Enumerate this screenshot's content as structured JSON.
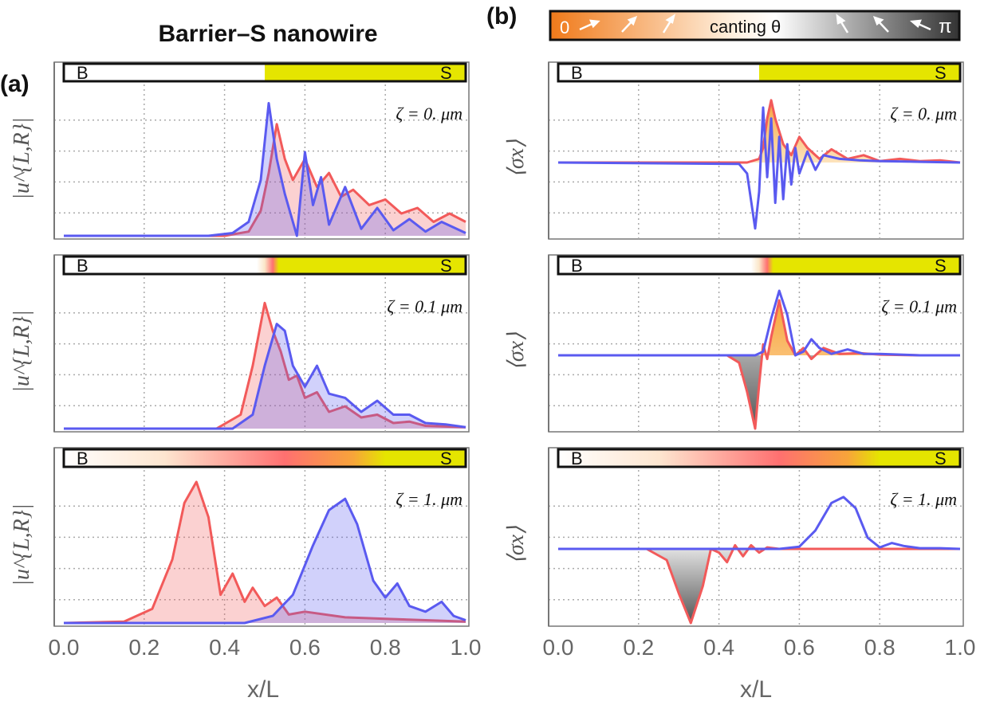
{
  "title": "Barrier–S nanowire",
  "panel_a_label": "(a)",
  "panel_b_label": "(b)",
  "canting": {
    "left": "0",
    "text": "canting θ",
    "right": "π",
    "start_color": "#f07a1a",
    "end_color": "#333333"
  },
  "region_labels": {
    "barrier": "B",
    "superconductor": "S"
  },
  "colors": {
    "red": "#f25a5a",
    "blue": "#5a5af0",
    "yellow": "#e5e500",
    "pink": "#ff7070"
  },
  "chart_data": [
    {
      "type": "line",
      "panel": "a",
      "row": 0,
      "zeta_label": "ζ = 0. μm",
      "ylabel": "|u^{L,R}|",
      "xlabel": "x/L",
      "xlim": [
        0,
        1
      ],
      "ylim": [
        0,
        1.05
      ],
      "series": [
        {
          "name": "L",
          "color": "red",
          "x": [
            0,
            0.4,
            0.46,
            0.49,
            0.51,
            0.53,
            0.55,
            0.57,
            0.6,
            0.63,
            0.66,
            0.69,
            0.72,
            0.76,
            0.8,
            0.84,
            0.88,
            0.92,
            0.96,
            1.0
          ],
          "y": [
            0,
            0.0,
            0.03,
            0.18,
            0.45,
            0.8,
            0.55,
            0.4,
            0.55,
            0.35,
            0.45,
            0.28,
            0.33,
            0.22,
            0.26,
            0.16,
            0.2,
            0.1,
            0.16,
            0.1
          ]
        },
        {
          "name": "R",
          "color": "blue",
          "x": [
            0,
            0.36,
            0.42,
            0.46,
            0.49,
            0.51,
            0.53,
            0.55,
            0.58,
            0.6,
            0.62,
            0.64,
            0.66,
            0.7,
            0.74,
            0.78,
            0.82,
            0.86,
            0.9,
            0.94,
            1.0
          ],
          "y": [
            0,
            0.0,
            0.02,
            0.1,
            0.4,
            0.95,
            0.55,
            0.3,
            0.0,
            0.6,
            0.22,
            0.42,
            0.08,
            0.35,
            0.05,
            0.2,
            0.04,
            0.12,
            0.03,
            0.1,
            0.02
          ]
        }
      ]
    },
    {
      "type": "line",
      "panel": "a",
      "row": 1,
      "zeta_label": "ζ = 0.1 μm",
      "ylabel": "|u^{L,R}|",
      "xlabel": "x/L",
      "xlim": [
        0,
        1
      ],
      "ylim": [
        0,
        1.05
      ],
      "series": [
        {
          "name": "L",
          "color": "red",
          "x": [
            0,
            0.38,
            0.44,
            0.47,
            0.5,
            0.52,
            0.54,
            0.56,
            0.58,
            0.6,
            0.63,
            0.66,
            0.7,
            0.74,
            0.78,
            0.82,
            0.86,
            0.9,
            1.0
          ],
          "y": [
            0,
            0.0,
            0.1,
            0.45,
            0.9,
            0.7,
            0.55,
            0.35,
            0.38,
            0.22,
            0.26,
            0.12,
            0.16,
            0.08,
            0.1,
            0.04,
            0.05,
            0.02,
            0.01
          ]
        },
        {
          "name": "R",
          "color": "blue",
          "x": [
            0,
            0.42,
            0.47,
            0.5,
            0.53,
            0.55,
            0.57,
            0.6,
            0.63,
            0.66,
            0.7,
            0.74,
            0.78,
            0.82,
            0.86,
            0.9,
            0.95,
            1.0
          ],
          "y": [
            0,
            0.0,
            0.1,
            0.45,
            0.75,
            0.7,
            0.45,
            0.3,
            0.45,
            0.25,
            0.22,
            0.12,
            0.2,
            0.1,
            0.1,
            0.04,
            0.03,
            0.01
          ]
        }
      ]
    },
    {
      "type": "line",
      "panel": "a",
      "row": 2,
      "zeta_label": "ζ = 1. μm",
      "ylabel": "|u^{L,R}|",
      "xlabel": "x/L",
      "xlim": [
        0,
        1
      ],
      "ylim": [
        0,
        1.05
      ],
      "series": [
        {
          "name": "L",
          "color": "red",
          "x": [
            0,
            0.15,
            0.22,
            0.27,
            0.3,
            0.33,
            0.36,
            0.39,
            0.42,
            0.45,
            0.47,
            0.5,
            0.53,
            0.56,
            0.6,
            0.7,
            0.8,
            0.9,
            1.0
          ],
          "y": [
            0,
            0.01,
            0.1,
            0.45,
            0.85,
            1.0,
            0.75,
            0.2,
            0.35,
            0.15,
            0.25,
            0.12,
            0.18,
            0.06,
            0.08,
            0.04,
            0.03,
            0.02,
            0.01
          ]
        },
        {
          "name": "R",
          "color": "blue",
          "x": [
            0,
            0.45,
            0.52,
            0.57,
            0.62,
            0.66,
            0.7,
            0.73,
            0.77,
            0.8,
            0.83,
            0.86,
            0.9,
            0.94,
            0.97,
            1.0
          ],
          "y": [
            0,
            0.0,
            0.05,
            0.2,
            0.55,
            0.8,
            0.88,
            0.7,
            0.3,
            0.18,
            0.28,
            0.12,
            0.08,
            0.15,
            0.05,
            0.02
          ]
        }
      ]
    },
    {
      "type": "line",
      "panel": "b",
      "row": 0,
      "zeta_label": "ζ = 0. μm",
      "ylabel": "⟨σx⟩",
      "xlabel": "x/L",
      "xlim": [
        0,
        1
      ],
      "ylim": [
        -1,
        1
      ],
      "series": [
        {
          "name": "L",
          "color": "red",
          "x": [
            0,
            0.47,
            0.5,
            0.51,
            0.52,
            0.53,
            0.54,
            0.56,
            0.58,
            0.6,
            0.62,
            0.65,
            0.68,
            0.72,
            0.76,
            0.8,
            0.85,
            0.9,
            0.95,
            1.0
          ],
          "y": [
            0,
            0,
            0.05,
            0.2,
            0.6,
            0.85,
            0.6,
            0.25,
            0.1,
            0.35,
            0.2,
            0.05,
            0.18,
            0.05,
            0.1,
            0.02,
            0.05,
            0.02,
            0.03,
            0.0
          ]
        },
        {
          "name": "R",
          "color": "blue",
          "x": [
            0,
            0.45,
            0.47,
            0.49,
            0.5,
            0.51,
            0.52,
            0.53,
            0.54,
            0.55,
            0.56,
            0.57,
            0.58,
            0.59,
            0.6,
            0.62,
            0.64,
            0.66,
            0.7,
            0.75,
            0.8,
            0.9,
            1.0
          ],
          "y": [
            0,
            -0.02,
            -0.15,
            -0.9,
            -0.4,
            0.75,
            -0.2,
            0.6,
            -0.55,
            0.35,
            -0.5,
            0.25,
            -0.3,
            0.2,
            -0.15,
            0.15,
            -0.1,
            0.1,
            0.05,
            0.03,
            0.02,
            0.01,
            0.0
          ]
        }
      ]
    },
    {
      "type": "line",
      "panel": "b",
      "row": 1,
      "zeta_label": "ζ = 0.1 μm",
      "ylabel": "⟨σx⟩",
      "xlabel": "x/L",
      "xlim": [
        0,
        1
      ],
      "ylim": [
        -1,
        1
      ],
      "series": [
        {
          "name": "L",
          "color": "red",
          "x": [
            0,
            0.42,
            0.45,
            0.47,
            0.49,
            0.5,
            0.51,
            0.52,
            0.53,
            0.55,
            0.57,
            0.59,
            0.61,
            0.63,
            0.66,
            0.7,
            0.75,
            0.8,
            0.9,
            1.0
          ],
          "y": [
            0,
            0,
            -0.1,
            -0.5,
            -1.0,
            -0.4,
            0.15,
            -0.05,
            0.25,
            0.75,
            0.2,
            0.0,
            0.1,
            -0.05,
            0.1,
            0.02,
            0.03,
            0.01,
            0.0,
            0.0
          ]
        },
        {
          "name": "R",
          "color": "blue",
          "x": [
            0,
            0.49,
            0.51,
            0.53,
            0.55,
            0.57,
            0.59,
            0.61,
            0.63,
            0.65,
            0.68,
            0.72,
            0.76,
            0.8,
            0.9,
            1.0
          ],
          "y": [
            0,
            0,
            0.05,
            0.5,
            0.88,
            0.55,
            0.0,
            0.05,
            0.22,
            0.1,
            0.02,
            0.08,
            0.02,
            0.02,
            0.0,
            0.0
          ]
        }
      ]
    },
    {
      "type": "line",
      "panel": "b",
      "row": 2,
      "zeta_label": "ζ = 1. μm",
      "ylabel": "⟨σx⟩",
      "xlabel": "x/L",
      "xlim": [
        0,
        1
      ],
      "ylim": [
        -1,
        1
      ],
      "series": [
        {
          "name": "L",
          "color": "red",
          "x": [
            0,
            0.22,
            0.27,
            0.3,
            0.33,
            0.36,
            0.38,
            0.4,
            0.42,
            0.44,
            0.46,
            0.48,
            0.5,
            0.52,
            0.55,
            0.6,
            0.7,
            0.8,
            1.0
          ],
          "y": [
            0,
            0,
            -0.15,
            -0.6,
            -1.0,
            -0.5,
            0.0,
            -0.05,
            -0.18,
            0.05,
            -0.1,
            0.05,
            -0.05,
            0.02,
            0.0,
            0.0,
            0.0,
            0.0,
            0.0
          ]
        },
        {
          "name": "R",
          "color": "blue",
          "x": [
            0,
            0.55,
            0.6,
            0.64,
            0.68,
            0.71,
            0.74,
            0.77,
            0.8,
            0.83,
            0.86,
            0.9,
            0.95,
            1.0
          ],
          "y": [
            0,
            0,
            0.03,
            0.25,
            0.62,
            0.7,
            0.55,
            0.15,
            0.02,
            0.08,
            0.04,
            0.01,
            0.01,
            0.0
          ]
        }
      ]
    }
  ],
  "xticks": [
    "0.0",
    "0.2",
    "0.4",
    "0.6",
    "0.8",
    "1.0"
  ],
  "xlabel": "x/L"
}
